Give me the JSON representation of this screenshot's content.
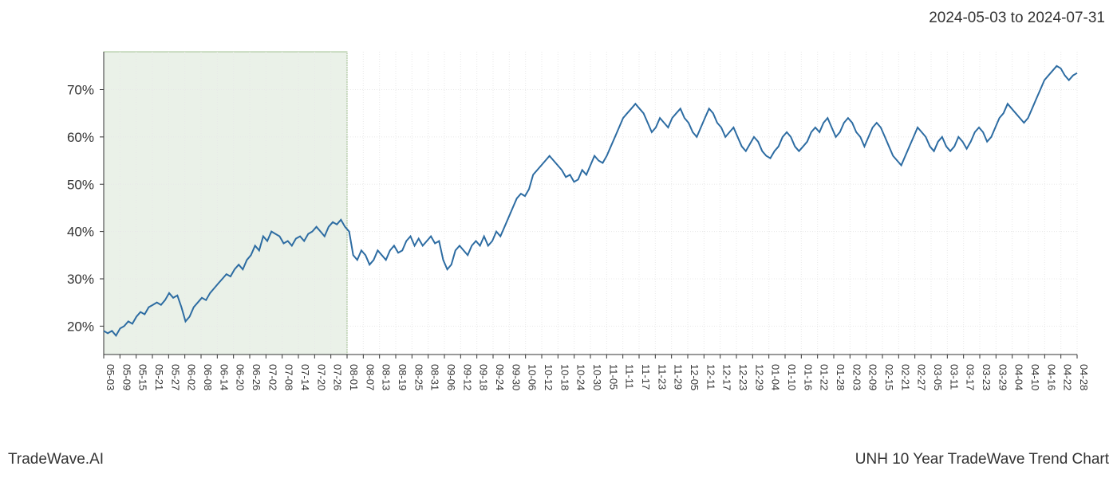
{
  "date_range_text": "2024-05-03 to 2024-07-31",
  "footer_left": "TradeWave.AI",
  "footer_right": "UNH 10 Year TradeWave Trend Chart",
  "chart": {
    "type": "line",
    "background_color": "#ffffff",
    "grid_color": "#e8e8e8",
    "axis_color": "#333333",
    "line_color": "#2d6ca2",
    "line_width": 2,
    "highlight_fill": "#dce8d8",
    "highlight_stroke": "#a0c090",
    "highlight_opacity": 0.6,
    "ylim": [
      14,
      78
    ],
    "ytick_values": [
      20,
      30,
      40,
      50,
      60,
      70
    ],
    "ytick_labels": [
      "20%",
      "30%",
      "40%",
      "50%",
      "60%",
      "70%"
    ],
    "ylabel_fontsize": 17,
    "xlabel_fontsize": 13,
    "x_labels": [
      "05-03",
      "05-09",
      "05-15",
      "05-21",
      "05-27",
      "06-02",
      "06-08",
      "06-14",
      "06-20",
      "06-26",
      "07-02",
      "07-08",
      "07-14",
      "07-20",
      "07-26",
      "08-01",
      "08-07",
      "08-13",
      "08-19",
      "08-25",
      "08-31",
      "09-06",
      "09-12",
      "09-18",
      "09-24",
      "09-30",
      "10-06",
      "10-12",
      "10-18",
      "10-24",
      "10-30",
      "11-05",
      "11-11",
      "11-17",
      "11-23",
      "11-29",
      "12-05",
      "12-11",
      "12-17",
      "12-23",
      "12-29",
      "01-04",
      "01-10",
      "01-16",
      "01-22",
      "01-28",
      "02-03",
      "02-09",
      "02-15",
      "02-21",
      "02-27",
      "03-05",
      "03-11",
      "03-17",
      "03-23",
      "03-29",
      "04-04",
      "04-10",
      "04-16",
      "04-22",
      "04-28"
    ],
    "highlight_x_start": 0,
    "highlight_x_end": 15,
    "data_values": [
      19,
      18.5,
      19,
      18,
      19.5,
      20,
      21,
      20.5,
      22,
      23,
      22.5,
      24,
      24.5,
      25,
      24.5,
      25.5,
      27,
      26,
      26.5,
      24,
      21,
      22,
      24,
      25,
      26,
      25.5,
      27,
      28,
      29,
      30,
      31,
      30.5,
      32,
      33,
      32,
      34,
      35,
      37,
      36,
      39,
      38,
      40,
      39.5,
      39,
      37.5,
      38,
      37,
      38.5,
      39,
      38,
      39.5,
      40,
      41,
      40,
      39,
      41,
      42,
      41.5,
      42.5,
      41,
      40,
      35,
      34,
      36,
      35,
      33,
      34,
      36,
      35,
      34,
      36,
      37,
      35.5,
      36,
      38,
      39,
      37,
      38.5,
      37,
      38,
      39,
      37.5,
      38,
      34,
      32,
      33,
      36,
      37,
      36,
      35,
      37,
      38,
      37,
      39,
      37,
      38,
      40,
      39,
      41,
      43,
      45,
      47,
      48,
      47.5,
      49,
      52,
      53,
      54,
      55,
      56,
      55,
      54,
      53,
      51.5,
      52,
      50.5,
      51,
      53,
      52,
      54,
      56,
      55,
      54.5,
      56,
      58,
      60,
      62,
      64,
      65,
      66,
      67,
      66,
      65,
      63,
      61,
      62,
      64,
      63,
      62,
      64,
      65,
      66,
      64,
      63,
      61,
      60,
      62,
      64,
      66,
      65,
      63,
      62,
      60,
      61,
      62,
      60,
      58,
      57,
      58.5,
      60,
      59,
      57,
      56,
      55.5,
      57,
      58,
      60,
      61,
      60,
      58,
      57,
      58,
      59,
      61,
      62,
      61,
      63,
      64,
      62,
      60,
      61,
      63,
      64,
      63,
      61,
      60,
      58,
      60,
      62,
      63,
      62,
      60,
      58,
      56,
      55,
      54,
      56,
      58,
      60,
      62,
      61,
      60,
      58,
      57,
      59,
      60,
      58,
      57,
      58,
      60,
      59,
      57.5,
      59,
      61,
      62,
      61,
      59,
      60,
      62,
      64,
      65,
      67,
      66,
      65,
      64,
      63,
      64,
      66,
      68,
      70,
      72,
      73,
      74,
      75,
      74.5,
      73,
      72,
      73,
      73.5
    ]
  }
}
